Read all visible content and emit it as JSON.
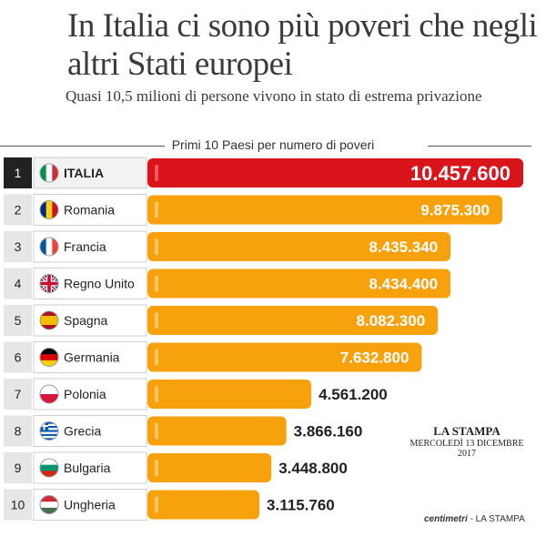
{
  "title": "In Italia ci sono più poveri che negli altri Stati europei",
  "subtitle": "Quasi 10,5 milioni di persone vivono in stato di estrema privazione",
  "legend": "Primi 10 Paesi per numero di poveri",
  "source": {
    "brand": "LA STAMPA",
    "date": "MERCOLEDÌ 13 DICEMBRE 2017"
  },
  "credit": {
    "brand": "centimetri",
    "rest": " - LA STAMPA"
  },
  "colors": {
    "highlight": "#d9141b",
    "bar": "#f7a10d",
    "rank_box": "#e6e6e6",
    "rank_box_first": "#222222"
  },
  "chart_data": {
    "type": "bar",
    "orientation": "horizontal",
    "categories": [
      "ITALIA",
      "Romania",
      "Francia",
      "Regno Unito",
      "Spagna",
      "Germania",
      "Polonia",
      "Grecia",
      "Bulgaria",
      "Ungheria"
    ],
    "ranks": [
      "1",
      "2",
      "3",
      "4",
      "5",
      "6",
      "7",
      "8",
      "9",
      "10"
    ],
    "values": [
      10457600,
      9875300,
      8435340,
      8434400,
      8082300,
      7632800,
      4561200,
      3866160,
      3448800,
      3115760
    ],
    "value_labels": [
      "10.457.600",
      "9.875.300",
      "8.435.340",
      "8.434.400",
      "8.082.300",
      "7.632.800",
      "4.561.200",
      "3.866.160",
      "3.448.800",
      "3.115.760"
    ],
    "flags": [
      "italy-flag-icon",
      "romania-flag-icon",
      "france-flag-icon",
      "uk-flag-icon",
      "spain-flag-icon",
      "germany-flag-icon",
      "poland-flag-icon",
      "greece-flag-icon",
      "bulgaria-flag-icon",
      "hungary-flag-icon"
    ],
    "highlight_index": 0,
    "legend": "top"
  }
}
